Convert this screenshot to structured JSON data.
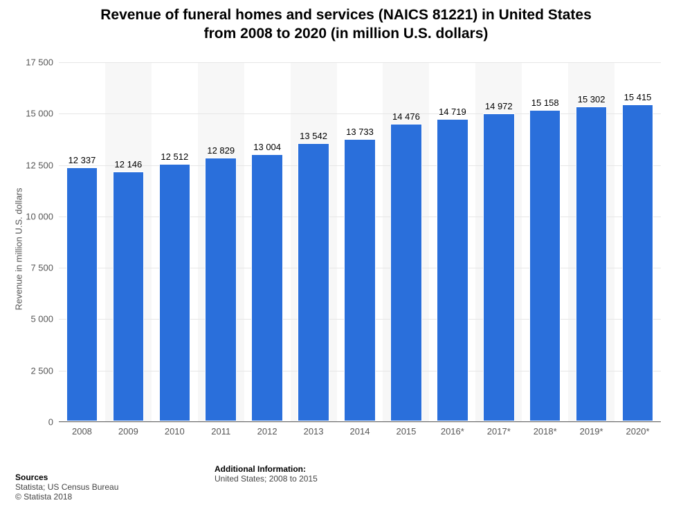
{
  "title_line1": "Revenue of funeral homes and services (NAICS 81221) in United States",
  "title_line2": "from 2008 to 2020 (in million U.S. dollars)",
  "title_fontsize": 21,
  "chart": {
    "type": "bar",
    "categories": [
      "2008",
      "2009",
      "2010",
      "2011",
      "2012",
      "2013",
      "2014",
      "2015",
      "2016*",
      "2017*",
      "2018*",
      "2019*",
      "2020*"
    ],
    "values": [
      12337,
      12146,
      12512,
      12829,
      13004,
      13542,
      13733,
      14476,
      14719,
      14972,
      15158,
      15302,
      15415
    ],
    "value_labels": [
      "12 337",
      "12 146",
      "12 512",
      "12 829",
      "13 004",
      "13 542",
      "13 733",
      "14 476",
      "14 719",
      "14 972",
      "15 158",
      "15 302",
      "15 415"
    ],
    "bar_color": "#2a6fdb",
    "bar_border_color": "#ffffff",
    "background_color": "#ffffff",
    "plotband_color": "#f7f7f7",
    "grid_color": "#e6e6e6",
    "ylabel": "Revenue in million U.S. dollars",
    "ylim": [
      0,
      17500
    ],
    "yticks": [
      0,
      2500,
      5000,
      7500,
      10000,
      12500,
      15000,
      17500
    ],
    "ytick_labels": [
      "0",
      "2 500",
      "5 000",
      "7 500",
      "10 000",
      "12 500",
      "15 000",
      "17 500"
    ],
    "tick_fontsize": 13,
    "ylabel_fontsize": 13,
    "value_label_fontsize": 13,
    "bar_width_ratio": 0.68
  },
  "footer": {
    "sources_h": "Sources",
    "sources_1": "Statista; US Census Bureau",
    "sources_2": "© Statista 2018",
    "addl_h": "Additional Information:",
    "addl_1": "United States; 2008 to 2015",
    "fontsize": 12
  }
}
